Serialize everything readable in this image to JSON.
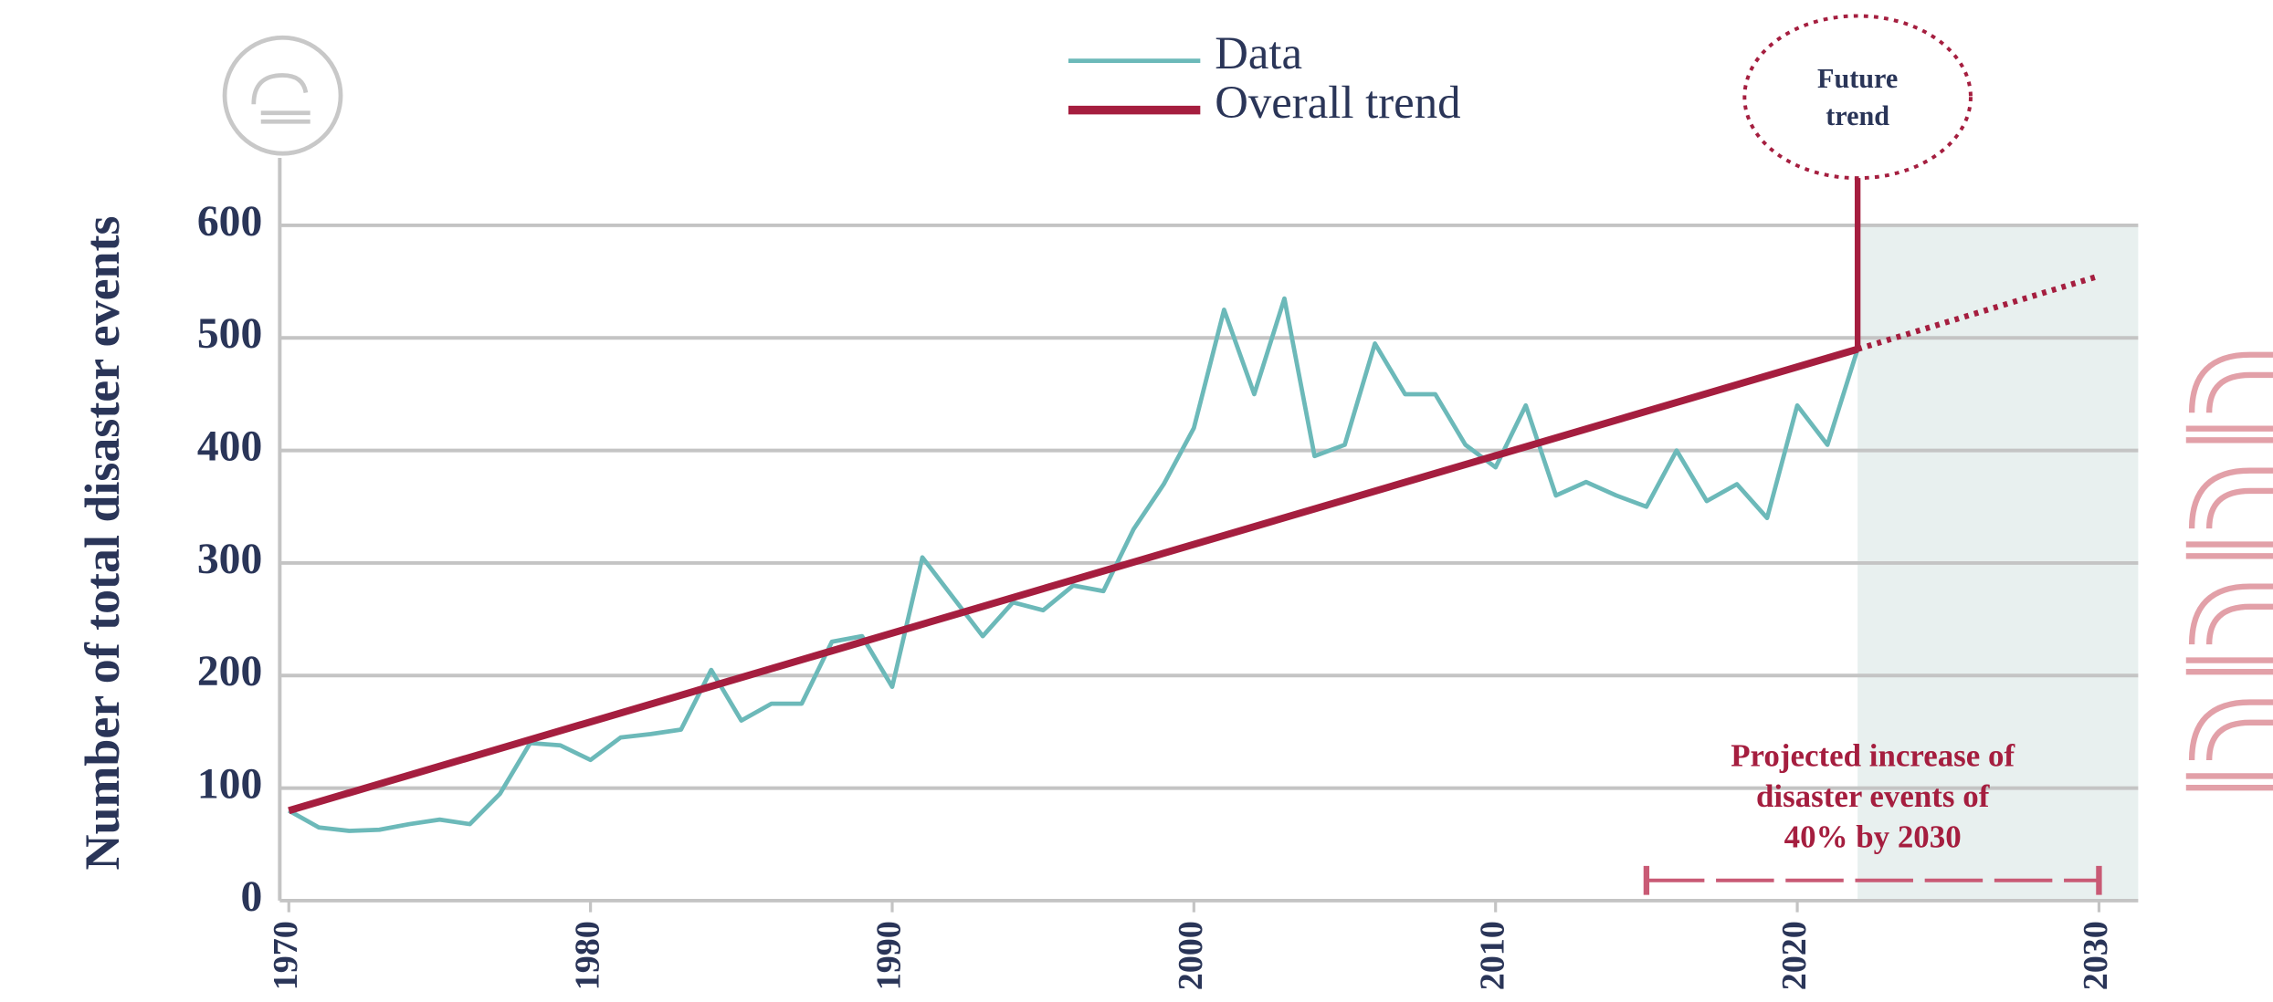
{
  "chart_data": {
    "type": "line",
    "y_label": "Number of total disaster events",
    "x": [
      1970,
      1971,
      1972,
      1973,
      1974,
      1975,
      1976,
      1977,
      1978,
      1979,
      1980,
      1981,
      1982,
      1983,
      1984,
      1985,
      1986,
      1987,
      1988,
      1989,
      1990,
      1991,
      1992,
      1993,
      1994,
      1995,
      1996,
      1997,
      1998,
      1999,
      2000,
      2001,
      2002,
      2003,
      2004,
      2005,
      2006,
      2007,
      2008,
      2009,
      2010,
      2011,
      2012,
      2013,
      2014,
      2015,
      2016,
      2017,
      2018,
      2019,
      2020,
      2021,
      2022
    ],
    "series": [
      {
        "name": "Data",
        "color": "#6cb9b9",
        "values": [
          80,
          65,
          62,
          63,
          68,
          72,
          68,
          95,
          140,
          138,
          125,
          145,
          148,
          152,
          205,
          160,
          175,
          175,
          230,
          235,
          190,
          305,
          270,
          235,
          265,
          258,
          280,
          275,
          330,
          370,
          420,
          525,
          450,
          535,
          395,
          405,
          495,
          450,
          450,
          405,
          385,
          440,
          360,
          372,
          360,
          350,
          400,
          355,
          370,
          340,
          440,
          405,
          490
        ]
      }
    ],
    "trend": {
      "name": "Overall trend",
      "color": "#a51e3f",
      "x": [
        1970,
        2022,
        2030
      ],
      "values": [
        80,
        490,
        555
      ]
    },
    "projection_start": 2022,
    "projection_color": "#e8f0ef",
    "annotations": {
      "future_trend": [
        "Future",
        "trend"
      ],
      "projected": [
        "Projected increase of",
        "disaster events of",
        "40% by 2030"
      ],
      "projected_range": [
        2015,
        2030
      ]
    },
    "xlim": [
      1969.7,
      2031.3
    ],
    "xticks": [
      1970,
      1980,
      1990,
      2000,
      2010,
      2020,
      2030
    ],
    "ylim": [
      0,
      660
    ],
    "yticks": [
      0,
      100,
      200,
      300,
      400,
      500,
      600
    ],
    "grid": true
  }
}
